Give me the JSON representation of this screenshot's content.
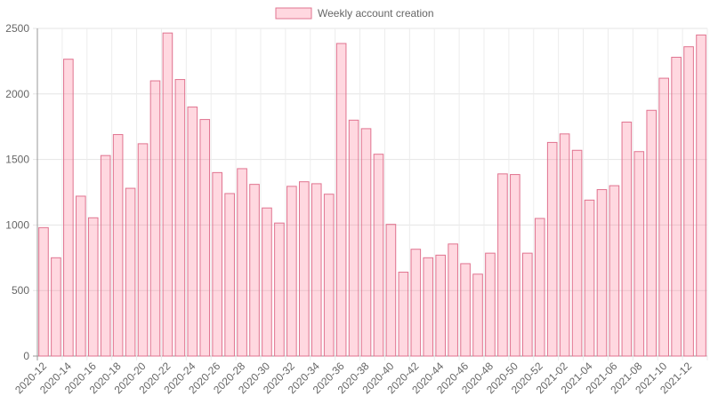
{
  "chart_data": {
    "type": "bar",
    "series": [
      {
        "name": "Weekly account creation",
        "color": "#e0738f",
        "fill": "rgba(255,99,132,0.25)",
        "values": [
          980,
          750,
          2265,
          1220,
          1055,
          1530,
          1690,
          1280,
          1620,
          2100,
          2465,
          2110,
          1900,
          1805,
          1400,
          1240,
          1430,
          1310,
          1130,
          1015,
          1295,
          1330,
          1315,
          1235,
          2385,
          1800,
          1735,
          1540,
          1005,
          640,
          815,
          750,
          770,
          855,
          705,
          625,
          785,
          1390,
          1385,
          785,
          1050,
          1630,
          1695,
          1570,
          1190,
          1270,
          1300,
          1785,
          1560,
          1875,
          2120,
          2280,
          2360,
          2450
        ]
      }
    ],
    "categories": [
      "2020-12",
      null,
      "2020-14",
      null,
      "2020-16",
      null,
      "2020-18",
      null,
      "2020-20",
      null,
      "2020-22",
      null,
      "2020-24",
      null,
      "2020-26",
      null,
      "2020-28",
      null,
      "2020-30",
      null,
      "2020-32",
      null,
      "2020-34",
      null,
      "2020-36",
      null,
      "2020-38",
      null,
      "2020-40",
      null,
      "2020-42",
      null,
      "2020-44",
      null,
      "2020-46",
      null,
      "2020-48",
      null,
      "2020-50",
      null,
      "2020-52",
      null,
      "2021-02",
      null,
      "2021-04",
      null,
      "2021-06",
      null,
      "2021-08",
      null,
      "2021-10",
      null,
      "2021-12",
      null
    ],
    "ylim": [
      0,
      2500
    ],
    "yticks": [
      0,
      500,
      1000,
      1500,
      2000,
      2500
    ],
    "grid": true,
    "legend": "top"
  }
}
